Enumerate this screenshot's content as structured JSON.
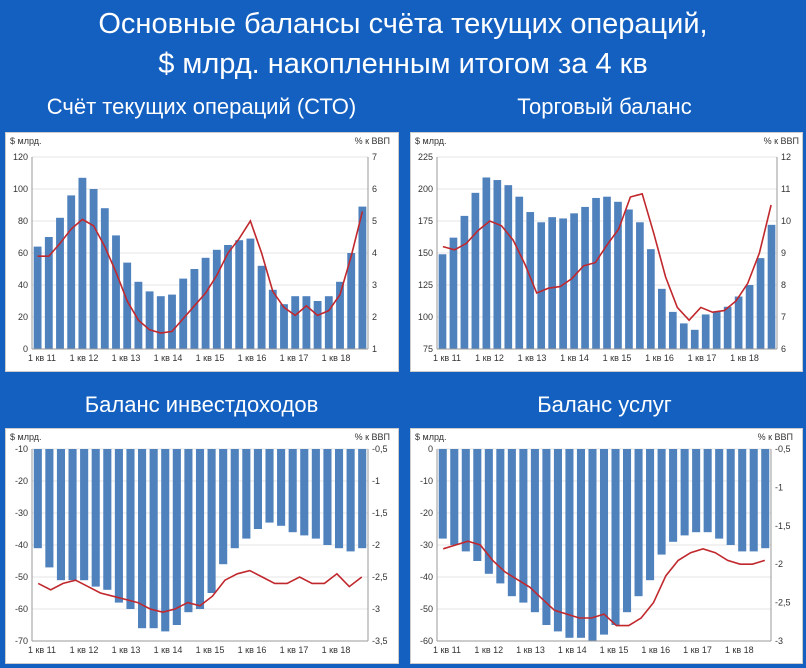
{
  "title_line1": "Основные балансы счёта текущих операций,",
  "title_line2": "$ млрд. накопленным итогом за 4 кв",
  "x_labels": [
    "1 кв 11",
    "1 кв 12",
    "1 кв 13",
    "1 кв 14",
    "1 кв 15",
    "1 кв 16",
    "1 кв 17",
    "1 кв 18"
  ],
  "colors": {
    "bar": "#4f81bd",
    "line": "#c0282d",
    "background": "#1360c0"
  },
  "chart_data": [
    {
      "type": "bar+line",
      "title": "Счёт текущих операций (СТО)",
      "ylabel_left": "$ млрд.",
      "ylabel_right": "% к ВВП",
      "ylim_left": [
        0,
        120
      ],
      "ylim_right": [
        1,
        7
      ],
      "ticks_left": [
        0,
        20,
        40,
        60,
        80,
        100,
        120
      ],
      "ticks_right": [
        1,
        2,
        3,
        4,
        5,
        6,
        7
      ],
      "series": [
        {
          "values": [
            64,
            70,
            82,
            96,
            107,
            100,
            88,
            71,
            54,
            42,
            36,
            33,
            34,
            44,
            50,
            57,
            62,
            65,
            68,
            69,
            52,
            37,
            28,
            33,
            33,
            30,
            33,
            42,
            60,
            89
          ]
        },
        {
          "values": [
            3.9,
            3.9,
            4.3,
            4.75,
            5.05,
            4.85,
            4.2,
            3.4,
            2.5,
            1.9,
            1.6,
            1.5,
            1.55,
            1.95,
            2.35,
            2.75,
            3.3,
            4.0,
            4.45,
            5.0,
            4.0,
            2.8,
            2.3,
            2.05,
            2.35,
            2.05,
            2.2,
            2.7,
            3.9,
            5.3
          ]
        }
      ]
    },
    {
      "type": "bar+line",
      "title": "Торговый баланс",
      "ylabel_left": "$ млрд.",
      "ylabel_right": "% к ВВП",
      "ylim_left": [
        75,
        225
      ],
      "ylim_right": [
        6,
        12
      ],
      "ticks_left": [
        75,
        100,
        125,
        150,
        175,
        200,
        225
      ],
      "ticks_right": [
        6,
        7,
        8,
        9,
        10,
        11,
        12
      ],
      "series": [
        {
          "values": [
            149,
            162,
            179,
            197,
            209,
            207,
            203,
            194,
            182,
            174,
            178,
            177,
            181,
            186,
            193,
            194,
            190,
            184,
            174,
            153,
            122,
            104,
            95,
            90,
            102,
            104,
            108,
            116,
            125,
            146,
            172
          ]
        },
        {
          "values": [
            9.2,
            9.1,
            9.3,
            9.7,
            10.0,
            9.85,
            9.4,
            8.65,
            7.75,
            7.9,
            7.95,
            8.2,
            8.6,
            8.7,
            9.25,
            9.75,
            10.75,
            10.85,
            9.6,
            8.25,
            7.3,
            6.9,
            7.3,
            7.15,
            7.2,
            7.5,
            8.05,
            9.0,
            10.5
          ]
        }
      ]
    },
    {
      "type": "bar+line",
      "title": "Баланс инвестдоходов",
      "ylabel_left": "$ млрд.",
      "ylabel_right": "% к ВВП",
      "ylim_left": [
        -70,
        -10
      ],
      "ylim_right": [
        -3.5,
        -0.5
      ],
      "ticks_left": [
        -70,
        -60,
        -50,
        -40,
        -30,
        -20,
        -10
      ],
      "ticks_right": [
        -3.5,
        -3.0,
        -2.5,
        -2.0,
        -1.5,
        -1.0,
        -0.5
      ],
      "series": [
        {
          "values": [
            -41,
            -47,
            -51,
            -51,
            -51,
            -53,
            -54,
            -58,
            -60,
            -66,
            -66,
            -67,
            -65,
            -61,
            -60,
            -55,
            -46,
            -41,
            -38,
            -35,
            -33,
            -34,
            -36,
            -37,
            -38,
            -40,
            -41,
            -42,
            -41
          ]
        },
        {
          "values": [
            -2.6,
            -2.7,
            -2.6,
            -2.55,
            -2.65,
            -2.75,
            -2.8,
            -2.85,
            -2.9,
            -3.0,
            -3.05,
            -3.0,
            -2.9,
            -2.95,
            -2.8,
            -2.55,
            -2.45,
            -2.4,
            -2.5,
            -2.6,
            -2.6,
            -2.5,
            -2.6,
            -2.6,
            -2.45,
            -2.65,
            -2.5
          ]
        }
      ]
    },
    {
      "type": "bar+line",
      "title": "Баланс услуг",
      "ylabel_left": "$ млрд.",
      "ylabel_right": "% к ВВП",
      "ylim_left": [
        -60,
        0
      ],
      "ylim_right": [
        -3.0,
        -0.5
      ],
      "ticks_left": [
        -60,
        -50,
        -40,
        -30,
        -20,
        -10,
        0
      ],
      "ticks_right": [
        -3.0,
        -2.5,
        -2.0,
        -1.5,
        -1.0,
        -0.5
      ],
      "series": [
        {
          "values": [
            -28,
            -30,
            -32,
            -35,
            -39,
            -42,
            -46,
            -48,
            -51,
            -55,
            -57,
            -59,
            -59,
            -60,
            -58,
            -55,
            -51,
            -46,
            -41,
            -33,
            -29,
            -27,
            -26,
            -26,
            -28,
            -30,
            -32,
            -32,
            -31
          ]
        },
        {
          "values": [
            -1.8,
            -1.75,
            -1.7,
            -1.75,
            -1.95,
            -2.1,
            -2.2,
            -2.3,
            -2.45,
            -2.6,
            -2.65,
            -2.7,
            -2.7,
            -2.65,
            -2.8,
            -2.8,
            -2.7,
            -2.5,
            -2.15,
            -1.95,
            -1.85,
            -1.8,
            -1.85,
            -1.95,
            -2.0,
            -2.0,
            -1.95
          ]
        }
      ]
    }
  ]
}
